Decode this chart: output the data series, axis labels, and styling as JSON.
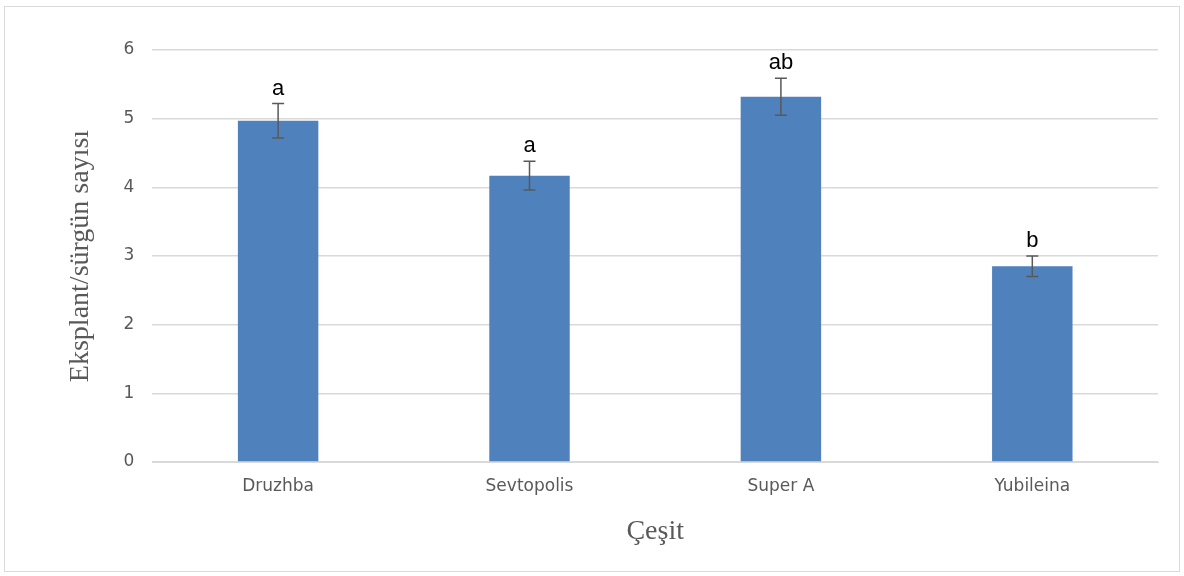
{
  "chart_data": {
    "type": "bar",
    "xlabel": "Çeşit",
    "ylabel": "Eksplant/sürgün sayısı",
    "categories": [
      "Druzhba",
      "Sevtopolis",
      "Super A",
      "Yubileina"
    ],
    "values": [
      4.97,
      4.17,
      5.32,
      2.85
    ],
    "color": "#4f81bd",
    "errors": [
      0.25,
      0.21,
      0.27,
      0.15
    ],
    "ylim": [
      0,
      6
    ],
    "yticks": [
      0,
      1,
      2,
      3,
      4,
      5,
      6
    ],
    "grid": "y",
    "legend": false,
    "annotations": [
      {
        "text": "a",
        "x": "Druzhba",
        "y": 5.22
      },
      {
        "text": "a",
        "x": "Sevtopolis",
        "y": 4.38
      },
      {
        "text": "ab",
        "x": "Super A",
        "y": 5.59
      },
      {
        "text": "b",
        "x": "Yubileina",
        "y": 3.0
      }
    ]
  }
}
